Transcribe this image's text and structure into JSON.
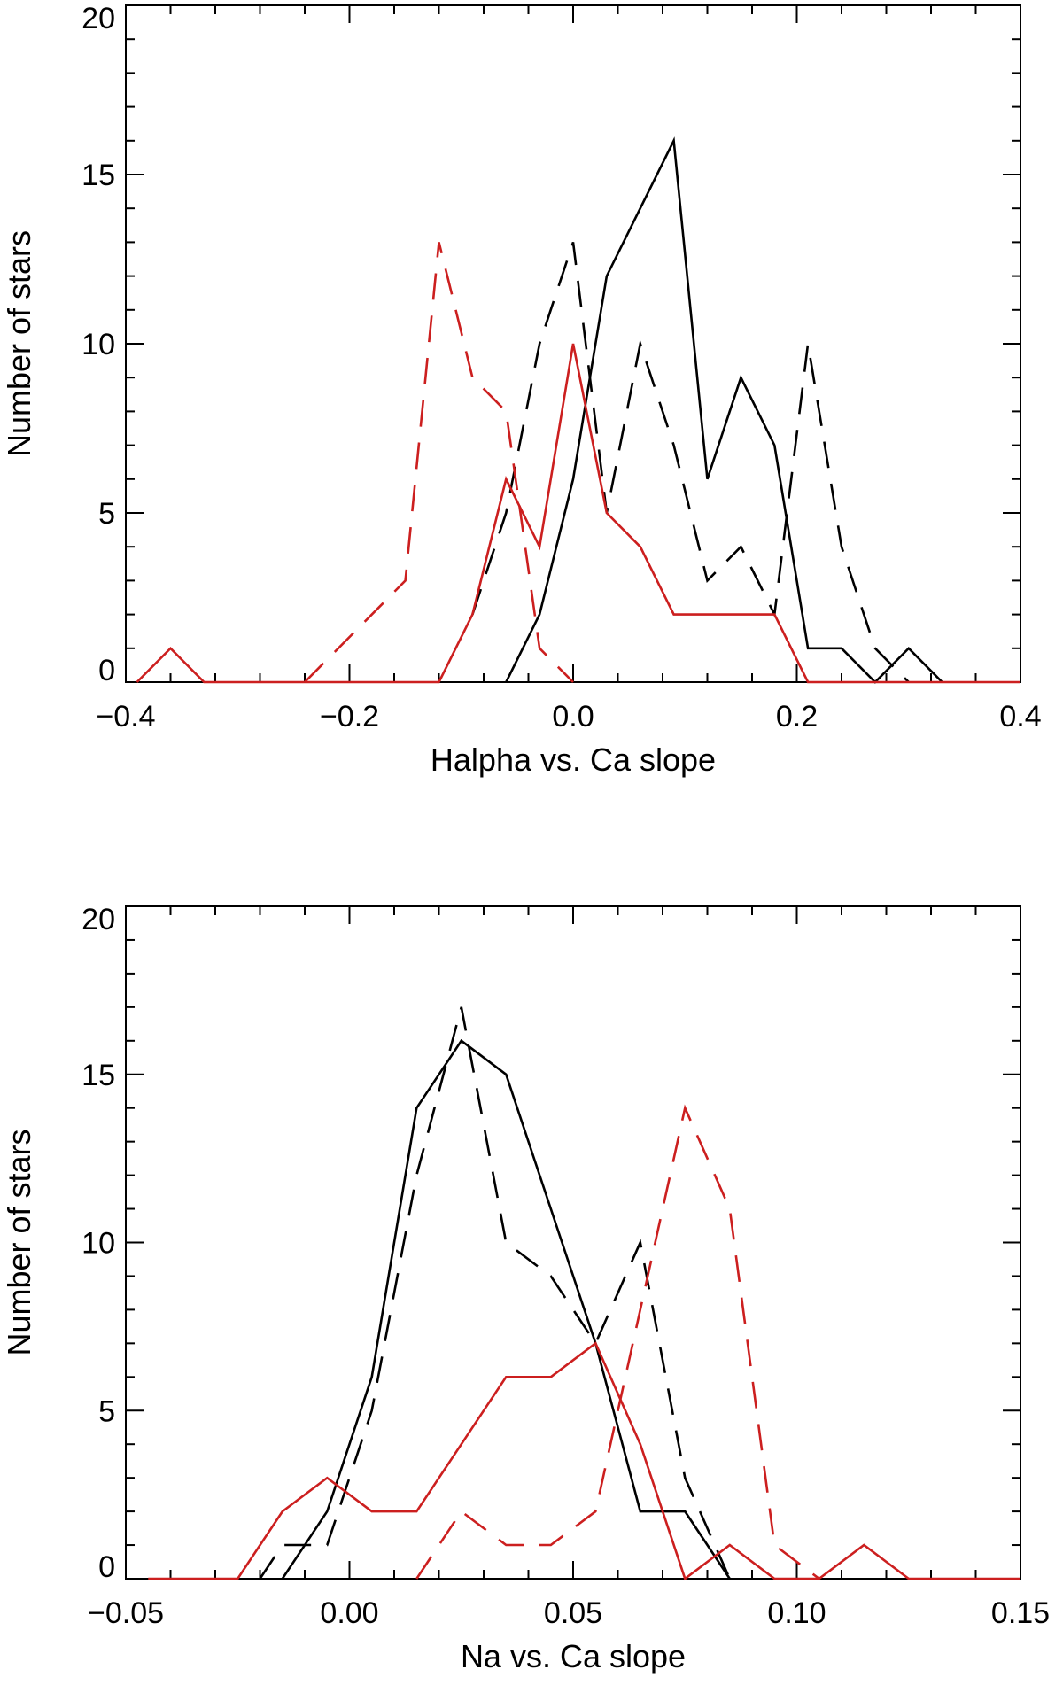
{
  "chart_data": [
    {
      "type": "line",
      "title": "",
      "xlabel": "Halpha vs. Ca slope",
      "ylabel": "Number of stars",
      "xlim": [
        -0.4,
        0.4
      ],
      "ylim": [
        0,
        20
      ],
      "xticks": [
        -0.4,
        -0.2,
        0.0,
        0.2,
        0.4
      ],
      "xtick_labels": [
        "−0.4",
        "−0.2",
        "0.0",
        "0.2",
        "0.4"
      ],
      "yticks": [
        0,
        5,
        10,
        15,
        20
      ],
      "ytick_labels": [
        "0",
        "5",
        "10",
        "15",
        "20"
      ],
      "grid": false,
      "legend": "none",
      "series": [
        {
          "name": "black solid",
          "color": "#000000",
          "style": "solid",
          "x": [
            -0.06,
            -0.03,
            0.0,
            0.03,
            0.09,
            0.12,
            0.15,
            0.18,
            0.21,
            0.24,
            0.27,
            0.3,
            0.33
          ],
          "y": [
            0,
            2,
            6,
            12,
            16,
            6,
            9,
            7,
            1,
            1,
            0,
            1,
            0
          ]
        },
        {
          "name": "black dashed",
          "color": "#000000",
          "style": "dashed",
          "x": [
            -0.09,
            -0.06,
            -0.03,
            0.0,
            0.03,
            0.06,
            0.09,
            0.12,
            0.15,
            0.18,
            0.21,
            0.24,
            0.27,
            0.3
          ],
          "y": [
            2,
            5,
            10,
            13,
            5,
            10,
            7,
            3,
            4,
            2,
            10,
            4,
            1,
            0
          ]
        },
        {
          "name": "red solid",
          "color": "#cc1f1f",
          "style": "solid",
          "x": [
            -0.39,
            -0.36,
            -0.33,
            -0.12,
            -0.09,
            -0.06,
            -0.03,
            0.0,
            0.03,
            0.06,
            0.09,
            0.12,
            0.15,
            0.18,
            0.21,
            0.4
          ],
          "y": [
            0,
            1,
            0,
            0,
            2,
            6,
            4,
            10,
            5,
            4,
            2,
            2,
            2,
            2,
            0,
            0
          ]
        },
        {
          "name": "red dashed",
          "color": "#cc1f1f",
          "style": "dashed",
          "x": [
            -0.24,
            -0.21,
            -0.18,
            -0.15,
            -0.12,
            -0.09,
            -0.06,
            -0.03,
            0.0
          ],
          "y": [
            0,
            1,
            2,
            3,
            13,
            9,
            8,
            1,
            0
          ]
        }
      ]
    },
    {
      "type": "line",
      "title": "",
      "xlabel": "Na vs. Ca slope",
      "ylabel": "Number of stars",
      "xlim": [
        -0.05,
        0.15
      ],
      "ylim": [
        0,
        20
      ],
      "xticks": [
        -0.05,
        0.0,
        0.05,
        0.1,
        0.15
      ],
      "xtick_labels": [
        "−0.05",
        "0.00",
        "0.05",
        "0.10",
        "0.15"
      ],
      "yticks": [
        0,
        5,
        10,
        15,
        20
      ],
      "ytick_labels": [
        "0",
        "5",
        "10",
        "15",
        "20"
      ],
      "grid": false,
      "legend": "none",
      "series": [
        {
          "name": "black solid",
          "color": "#000000",
          "style": "solid",
          "x": [
            -0.015,
            -0.005,
            0.005,
            0.015,
            0.025,
            0.035,
            0.045,
            0.055,
            0.065,
            0.075,
            0.085
          ],
          "y": [
            0,
            2,
            6,
            14,
            16,
            15,
            11,
            7,
            2,
            2,
            0
          ]
        },
        {
          "name": "black dashed",
          "color": "#000000",
          "style": "dashed",
          "x": [
            -0.02,
            -0.015,
            -0.005,
            0.005,
            0.015,
            0.025,
            0.035,
            0.045,
            0.055,
            0.065,
            0.075,
            0.085
          ],
          "y": [
            0,
            1,
            1,
            5,
            12,
            17,
            10,
            9,
            7,
            10,
            3,
            0
          ]
        },
        {
          "name": "red solid",
          "color": "#cc1f1f",
          "style": "solid",
          "x": [
            -0.045,
            -0.025,
            -0.015,
            -0.005,
            0.005,
            0.015,
            0.025,
            0.035,
            0.045,
            0.055,
            0.065,
            0.075,
            0.085,
            0.095,
            0.105,
            0.115,
            0.125,
            0.15
          ],
          "y": [
            0,
            0,
            2,
            3,
            2,
            2,
            4,
            6,
            6,
            7,
            4,
            0,
            1,
            0,
            0,
            1,
            0,
            0
          ]
        },
        {
          "name": "red dashed",
          "color": "#cc1f1f",
          "style": "dashed",
          "x": [
            0.015,
            0.025,
            0.035,
            0.045,
            0.055,
            0.065,
            0.075,
            0.085,
            0.095,
            0.105
          ],
          "y": [
            0,
            2,
            1,
            1,
            2,
            8,
            14,
            11,
            1,
            0
          ]
        }
      ]
    }
  ]
}
